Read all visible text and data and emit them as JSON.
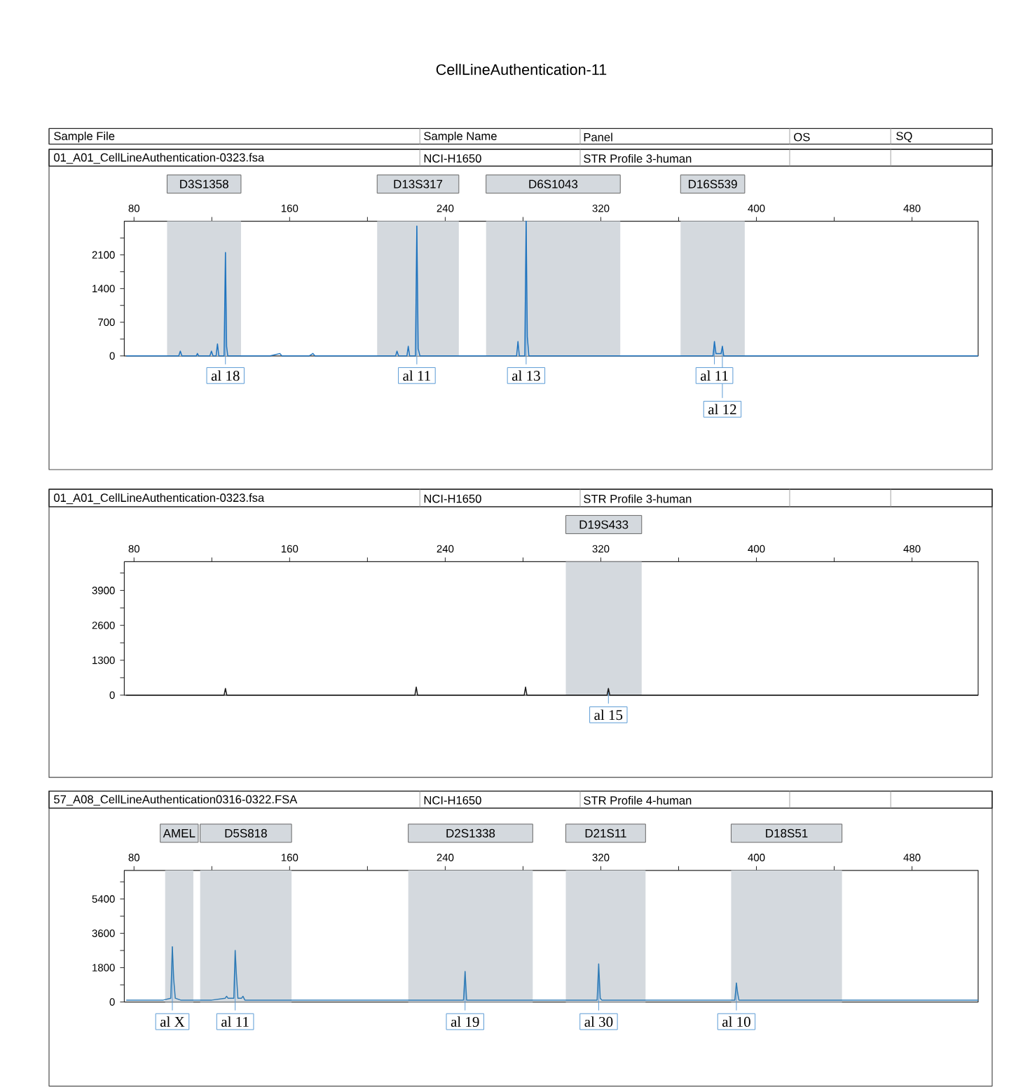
{
  "chart_data": [
    {
      "type": "line",
      "title": "CellLineAuthentication-11",
      "x": [
        76,
        95,
        103,
        103.8,
        104.6,
        112,
        112.6,
        113.2,
        119,
        119.8,
        120.6,
        122.2,
        122.9,
        123.6,
        126.3,
        127,
        127.6,
        128.2,
        135,
        150,
        155,
        156,
        170,
        172,
        173,
        205,
        214.5,
        215.2,
        216,
        220.3,
        221,
        221.7,
        224.7,
        225.4,
        226.1,
        227,
        232,
        260,
        276.7,
        277.4,
        278.1,
        280.9,
        281.6,
        282.2,
        283,
        290,
        375,
        377.7,
        378.4,
        379.2,
        381.8,
        382.5,
        383.2,
        390,
        514
      ],
      "series": [
        {
          "color": "#1e73be",
          "values": [
            0,
            0,
            0,
            100,
            0,
            0,
            50,
            0,
            0,
            100,
            0,
            0,
            250,
            0,
            0,
            2150,
            200,
            0,
            0,
            0,
            50,
            0,
            0,
            50,
            0,
            0,
            0,
            100,
            0,
            0,
            200,
            0,
            0,
            2700,
            150,
            0,
            0,
            0,
            0,
            300,
            0,
            0,
            2800,
            400,
            0,
            0,
            0,
            0,
            300,
            50,
            50,
            200,
            0,
            0,
            0
          ]
        }
      ],
      "xlim": [
        75,
        514
      ],
      "xticks": [
        80,
        {
          "value": 120,
          "label": null
        },
        160,
        {
          "value": 200,
          "label": null
        },
        240,
        {
          "value": 280,
          "label": null
        },
        320,
        {
          "value": 360,
          "label": null
        },
        400,
        {
          "value": 440,
          "label": null
        },
        480
      ],
      "ylim": [
        0,
        2800
      ],
      "yticks": [
        0,
        {
          "value": 350,
          "label": null
        },
        700,
        {
          "value": 1050,
          "label": null
        },
        1400,
        {
          "value": 1750,
          "label": null
        },
        2100,
        {
          "value": 2450,
          "label": null
        }
      ],
      "marker": "none",
      "bands": [
        {
          "axis": "x",
          "from": 97,
          "to": 135,
          "label": "D3S1358",
          "color": "#d4d9de"
        },
        {
          "axis": "x",
          "from": 205,
          "to": 247,
          "label": "D13S317",
          "color": "#d4d9de"
        },
        {
          "axis": "x",
          "from": 261,
          "to": 330,
          "label": "D6S1043",
          "color": "#d4d9de"
        },
        {
          "axis": "x",
          "from": 361,
          "to": 394,
          "label": "D16S539",
          "color": "#d4d9de"
        }
      ],
      "annotations": [
        "Sample File",
        "Sample Name",
        "Panel",
        "OS",
        "SQ",
        "01_A01_CellLineAuthentication-0323.fsa",
        "NCI-H1650",
        "STR Profile 3-human",
        {
          "text": "al 18",
          "x": 127,
          "y": 2150
        },
        {
          "text": "al 11",
          "x": 225.4,
          "y": 2700
        },
        {
          "text": "al 13",
          "x": 281.6,
          "y": 2800
        },
        {
          "text": "al 11",
          "x": 378.4,
          "y": 300
        },
        {
          "text": "al 12",
          "x": 382.5,
          "y": 200
        }
      ]
    },
    {
      "type": "line",
      "x": [
        76,
        126.3,
        127,
        127.7,
        224.4,
        225.1,
        225.8,
        280.6,
        281.3,
        282,
        323.2,
        323.9,
        324.6,
        514
      ],
      "series": [
        {
          "color": "#1a1a1a",
          "values": [
            0,
            0,
            250,
            0,
            0,
            300,
            0,
            0,
            300,
            0,
            0,
            250,
            0,
            0
          ]
        }
      ],
      "xlim": [
        75,
        514
      ],
      "xticks": [
        80,
        {
          "value": 120,
          "label": null
        },
        160,
        {
          "value": 200,
          "label": null
        },
        240,
        {
          "value": 280,
          "label": null
        },
        320,
        {
          "value": 360,
          "label": null
        },
        400,
        {
          "value": 440,
          "label": null
        },
        480
      ],
      "ylim": [
        0,
        4970
      ],
      "yticks": [
        0,
        {
          "value": 650,
          "label": null
        },
        1300,
        {
          "value": 1950,
          "label": null
        },
        2600,
        {
          "value": 3250,
          "label": null
        },
        3900,
        {
          "value": 4550,
          "label": null
        }
      ],
      "marker": "none",
      "bands": [
        {
          "axis": "x",
          "from": 302,
          "to": 341,
          "label": "D19S433",
          "color": "#d4d9de"
        }
      ],
      "annotations": [
        "01_A01_CellLineAuthentication-0323.fsa",
        "NCI-H1650",
        "STR Profile 3-human",
        {
          "text": "al 15",
          "x": 323.9,
          "y": 250
        }
      ]
    },
    {
      "type": "line",
      "x": [
        76,
        95,
        98.9,
        99.7,
        100.4,
        101.2,
        104,
        120,
        126.9,
        127.6,
        128.3,
        131.3,
        132,
        132.6,
        133.4,
        135.3,
        136,
        137,
        160,
        200,
        230,
        236,
        237,
        249.4,
        250.2,
        251,
        300,
        314,
        315,
        318.1,
        318.9,
        319.7,
        320.5,
        388.9,
        389.7,
        390.3,
        391,
        514
      ],
      "series": [
        {
          "color": "#2f7bb5",
          "values": [
            100,
            100,
            200,
            2900,
            1200,
            200,
            100,
            100,
            200,
            300,
            200,
            200,
            2700,
            1500,
            200,
            200,
            300,
            100,
            100,
            100,
            100,
            100,
            100,
            100,
            1600,
            100,
            100,
            100,
            100,
            100,
            2000,
            200,
            100,
            100,
            1000,
            500,
            100,
            100
          ]
        }
      ],
      "xlim": [
        75,
        514
      ],
      "xticks": [
        80,
        {
          "value": 120,
          "label": null
        },
        160,
        {
          "value": 200,
          "label": null
        },
        240,
        {
          "value": 280,
          "label": null
        },
        320,
        {
          "value": 360,
          "label": null
        },
        400,
        {
          "value": 440,
          "label": null
        },
        480
      ],
      "ylim": [
        0,
        6900
      ],
      "yticks": [
        0,
        {
          "value": 900,
          "label": null
        },
        1800,
        {
          "value": 2700,
          "label": null
        },
        3600,
        {
          "value": 4500,
          "label": null
        },
        5400,
        {
          "value": 6300,
          "label": null
        }
      ],
      "marker": "none",
      "bands": [
        {
          "axis": "x",
          "from": 96,
          "to": 110.5,
          "label": "AMEL",
          "color": "#d4d9de"
        },
        {
          "axis": "x",
          "from": 114,
          "to": 161,
          "label": "D5S818",
          "color": "#d4d9de"
        },
        {
          "axis": "x",
          "from": 221,
          "to": 285,
          "label": "D2S1338",
          "color": "#d4d9de"
        },
        {
          "axis": "x",
          "from": 302,
          "to": 343,
          "label": "D21S11",
          "color": "#d4d9de"
        },
        {
          "axis": "x",
          "from": 387,
          "to": 444,
          "label": "D18S51",
          "color": "#d4d9de"
        }
      ],
      "annotations": [
        "57_A08_CellLineAuthentication0316-0322.FSA",
        "NCI-H1650",
        "STR Profile 4-human",
        {
          "text": "al X",
          "x": 99.7,
          "y": 2900
        },
        {
          "text": "al 11",
          "x": 132,
          "y": 2700
        },
        {
          "text": "al 19",
          "x": 250.2,
          "y": 1600
        },
        {
          "text": "al 30",
          "x": 318.9,
          "y": 2000
        },
        {
          "text": "al 10",
          "x": 389.7,
          "y": 1000
        }
      ]
    }
  ]
}
